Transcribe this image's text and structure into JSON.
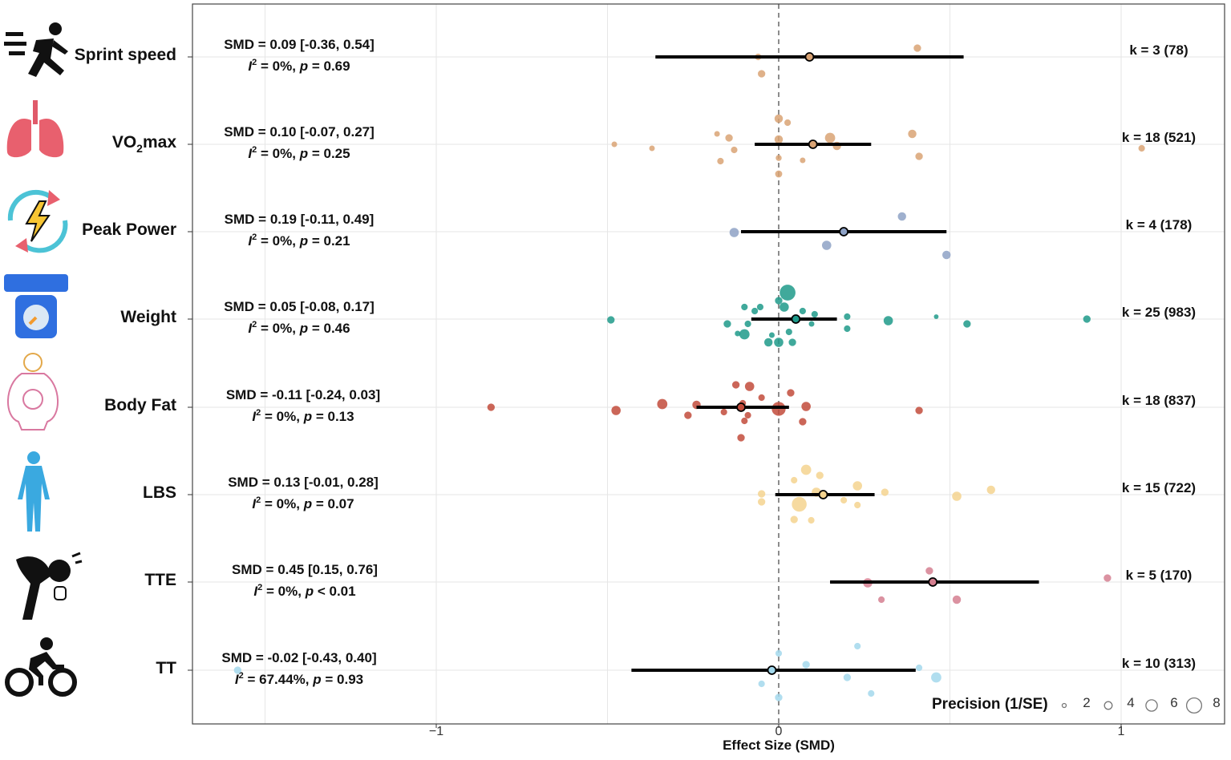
{
  "chart_data": {
    "type": "scatter",
    "subtype": "orchard/forest plot",
    "xlabel": "Effect Size (SMD)",
    "xlim": [
      -1.71,
      1.3
    ],
    "xticks": [
      -1,
      0,
      1
    ],
    "xtick_labels": [
      "−1",
      "0",
      "1"
    ],
    "grid": true,
    "reference_line": 0,
    "legend": {
      "title": "Precision (1/SE)",
      "placement": "bottom-right",
      "sizes": [
        2,
        4,
        6,
        8
      ],
      "labels": [
        "2",
        "4",
        "6",
        "8"
      ]
    },
    "rows": [
      {
        "label": "Sprint speed",
        "icon": "running-icon",
        "color": "#d9a374",
        "smd_text": "SMD = 0.09 [-0.36, 0.54]",
        "i2": "0%",
        "p_op": "=",
        "p": "0.69",
        "k_text": "k = 3 (78)",
        "estimate": 0.09,
        "ci": [
          -0.36,
          0.54
        ],
        "points": [
          [
            0.405,
            3
          ],
          [
            -0.06,
            2.5
          ],
          [
            -0.05,
            3
          ]
        ]
      },
      {
        "label": "VO",
        "label_sub": "2",
        "label_tail": "max",
        "icon": "lungs-icon",
        "color": "#d9a374",
        "smd_text": "SMD = 0.10 [-0.07, 0.27]",
        "i2": "0%",
        "p_op": "=",
        "p": "0.25",
        "k_text": "k = 18 (521)",
        "estimate": 0.1,
        "ci": [
          -0.07,
          0.27
        ],
        "points": [
          [
            0.0,
            3.5
          ],
          [
            0.026,
            2.5
          ],
          [
            -0.18,
            2
          ],
          [
            -0.145,
            3
          ],
          [
            0.15,
            4.5
          ],
          [
            0.39,
            3.5
          ],
          [
            -0.48,
            2
          ],
          [
            -0.37,
            2
          ],
          [
            0.0,
            3.5
          ],
          [
            -0.13,
            2.5
          ],
          [
            0.17,
            3.5
          ],
          [
            -0.17,
            2.5
          ],
          [
            0.0,
            2.2
          ],
          [
            0.07,
            2
          ],
          [
            0.41,
            3
          ],
          [
            0.0,
            2.8
          ],
          [
            1.06,
            2.5
          ],
          [
            0.105,
            2.5
          ]
        ]
      },
      {
        "label": "Peak Power",
        "icon": "power-cycle-icon",
        "color": "#8ea2c6",
        "smd_text": "SMD = 0.19 [-0.11, 0.49]",
        "i2": "0%",
        "p_op": "=",
        "p": "0.21",
        "k_text": "k = 4 (178)",
        "estimate": 0.19,
        "ci": [
          -0.11,
          0.49
        ],
        "points": [
          [
            0.36,
            3.5
          ],
          [
            -0.13,
            4
          ],
          [
            0.14,
            4
          ],
          [
            0.49,
            3.5
          ]
        ]
      },
      {
        "label": "Weight",
        "icon": "scale-icon",
        "color": "#1e9a8a",
        "smd_text": "SMD = 0.05 [-0.08, 0.17]",
        "i2": "0%",
        "p_op": "=",
        "p": "0.46",
        "k_text": "k = 25 (983)",
        "estimate": 0.05,
        "ci": [
          -0.08,
          0.17
        ],
        "points": [
          [
            0.026,
            7.5
          ],
          [
            0.0,
            3
          ],
          [
            0.016,
            4
          ],
          [
            -0.1,
            2.5
          ],
          [
            -0.054,
            2.5
          ],
          [
            0.105,
            2.5
          ],
          [
            0.2,
            2.5
          ],
          [
            -0.49,
            3
          ],
          [
            -0.15,
            3
          ],
          [
            -0.09,
            2.5
          ],
          [
            0.096,
            2
          ],
          [
            0.32,
            4
          ],
          [
            0.46,
            1.5
          ],
          [
            0.55,
            3
          ],
          [
            0.9,
            3
          ],
          [
            -0.1,
            4.5
          ],
          [
            -0.03,
            3.5
          ],
          [
            0.0,
            4
          ],
          [
            0.04,
            3
          ],
          [
            0.2,
            2.5
          ],
          [
            -0.07,
            2.5
          ],
          [
            0.07,
            2.5
          ],
          [
            -0.02,
            2
          ],
          [
            0.03,
            2.5
          ],
          [
            -0.12,
            2
          ]
        ]
      },
      {
        "label": "Body Fat",
        "icon": "body-fat-icon",
        "color": "#c24b3b",
        "smd_text": "SMD = -0.11 [-0.24, 0.03]",
        "i2": "0%",
        "p_op": "=",
        "p": "0.13",
        "k_text": "k = 18 (837)",
        "estimate": -0.11,
        "ci": [
          -0.24,
          0.03
        ],
        "points": [
          [
            -0.125,
            3
          ],
          [
            -0.085,
            4
          ],
          [
            0.035,
            3
          ],
          [
            -0.84,
            3
          ],
          [
            -0.475,
            4
          ],
          [
            -0.34,
            4.5
          ],
          [
            -0.24,
            3.5
          ],
          [
            -0.265,
            3
          ],
          [
            -0.16,
            2.5
          ],
          [
            -0.105,
            2.5
          ],
          [
            -0.1,
            2.5
          ],
          [
            0.0,
            6.5
          ],
          [
            0.08,
            4
          ],
          [
            0.07,
            3
          ],
          [
            0.41,
            3
          ],
          [
            -0.11,
            3
          ],
          [
            -0.09,
            2.5
          ],
          [
            -0.05,
            2.5
          ]
        ]
      },
      {
        "label": "LBS",
        "icon": "human-body-icon",
        "color": "#f4d38f",
        "smd_text": "SMD = 0.13 [-0.01, 0.28]",
        "i2": "0%",
        "p_op": "=",
        "p": "0.07",
        "k_text": "k = 15 (722)",
        "estimate": 0.13,
        "ci": [
          -0.01,
          0.28
        ],
        "points": [
          [
            0.08,
            4.5
          ],
          [
            0.045,
            2.5
          ],
          [
            0.12,
            3
          ],
          [
            0.23,
            4
          ],
          [
            0.31,
            3
          ],
          [
            0.52,
            4
          ],
          [
            0.62,
            3.5
          ],
          [
            -0.05,
            3
          ],
          [
            -0.05,
            3
          ],
          [
            0.06,
            7
          ],
          [
            0.11,
            4
          ],
          [
            0.19,
            2.5
          ],
          [
            0.23,
            2.5
          ],
          [
            0.045,
            3
          ],
          [
            0.095,
            2.5
          ]
        ]
      },
      {
        "label": "TTE",
        "icon": "exhaustion-icon",
        "color": "#d57f90",
        "smd_text": "SMD = 0.45 [0.15, 0.76]",
        "i2": "0%",
        "p_op": "<",
        "p": "0.01",
        "k_text": "k = 5 (170)",
        "estimate": 0.45,
        "ci": [
          0.15,
          0.76
        ],
        "points": [
          [
            0.44,
            3
          ],
          [
            0.26,
            4
          ],
          [
            0.3,
            2.5
          ],
          [
            0.52,
            3.5
          ],
          [
            0.96,
            3
          ]
        ]
      },
      {
        "label": "TT",
        "icon": "cycling-icon",
        "color": "#a3d8ec",
        "smd_text": "SMD = -0.02 [-0.43, 0.40]",
        "i2": "67.44%",
        "p_op": "=",
        "p": "0.93",
        "k_text": "k = 10 (313)",
        "estimate": -0.02,
        "ci": [
          -0.43,
          0.4
        ],
        "points": [
          [
            0.0,
            2.5
          ],
          [
            0.23,
            2.5
          ],
          [
            0.08,
            3
          ],
          [
            0.41,
            2.5
          ],
          [
            0.46,
            4.5
          ],
          [
            -0.05,
            2.5
          ],
          [
            0.2,
            3
          ],
          [
            0.27,
            2.5
          ],
          [
            0.0,
            3
          ],
          [
            -1.58,
            3
          ]
        ]
      }
    ]
  }
}
